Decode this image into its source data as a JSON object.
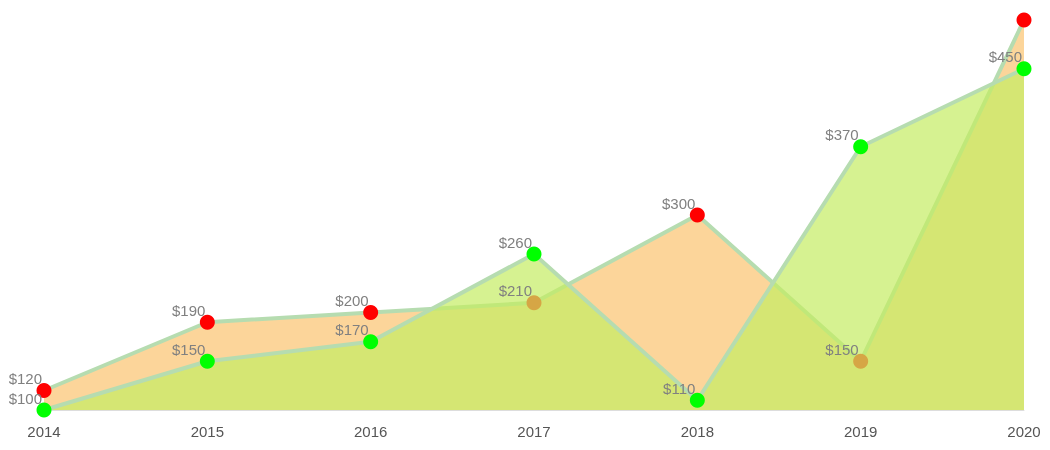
{
  "chart_data": {
    "type": "area",
    "categories": [
      "2014",
      "2015",
      "2016",
      "2017",
      "2018",
      "2019",
      "2020"
    ],
    "series": [
      {
        "color": "#fcd59a",
        "colors": [
          "#ff0000",
          "#ff0000",
          "#ff0000",
          "#ff0000",
          "#ff0000",
          "#ff0000",
          "#ff0000"
        ],
        "values": [
          120,
          190,
          200,
          210,
          300,
          150,
          500
        ],
        "value_labels": [
          "$120",
          "$190",
          "$200",
          "$210",
          "$300",
          "$150",
          null
        ]
      },
      {
        "color": "#c4ed62",
        "colors": [
          "#00ff00",
          "#00ff00",
          "#00ff00",
          "#00ff00",
          "#00ff00",
          "#00ff00",
          "#00ff00"
        ],
        "values": [
          100,
          150,
          170,
          260,
          110,
          370,
          450
        ],
        "value_labels": [
          "$100",
          "$150",
          "$170",
          "$260",
          "$110",
          "$370",
          "$450"
        ]
      }
    ],
    "grid": false,
    "marker": "circle"
  }
}
